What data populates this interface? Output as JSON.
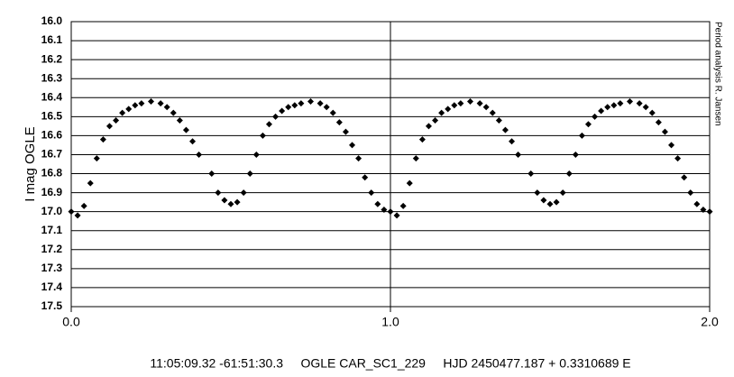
{
  "chart_data": {
    "type": "scatter",
    "y_label": "I mag OGLE",
    "caption": "11:05:09.32 -61:51:30.3     OGLE CAR_SC1_229     HJD 2450477.187 + 0.3310689 E",
    "annotation": "Period analysis R. Jansen",
    "color": "#000000",
    "grid": true,
    "y_inverted": true,
    "xlim": [
      0,
      2
    ],
    "xticks": [
      {
        "value": 0,
        "label": "0.0"
      },
      {
        "value": 1,
        "label": "1.0"
      },
      {
        "value": 2,
        "label": "2.0"
      }
    ],
    "ylim": [
      16,
      17.5
    ],
    "yticks": [
      {
        "value": 16,
        "label": "16.0"
      },
      16.1,
      16.2,
      16.3,
      16.4,
      16.5,
      16.6,
      16.7,
      16.8,
      16.9,
      {
        "value": 17,
        "label": "17.0"
      },
      17.1,
      17.2,
      17.3,
      17.4,
      17.5
    ],
    "x": [
      0.0,
      0.02,
      0.04,
      0.06,
      0.08,
      0.1,
      0.12,
      0.14,
      0.16,
      0.18,
      0.2,
      0.22,
      0.25,
      0.28,
      0.3,
      0.32,
      0.34,
      0.36,
      0.38,
      0.4,
      0.44,
      0.46,
      0.48,
      0.5,
      0.52,
      0.54,
      0.56,
      0.58,
      0.6,
      0.62,
      0.64,
      0.66,
      0.68,
      0.7,
      0.72,
      0.75,
      0.78,
      0.8,
      0.82,
      0.84,
      0.86,
      0.88,
      0.9,
      0.92,
      0.94,
      0.96,
      0.98,
      1.0,
      1.02,
      1.04,
      1.06,
      1.08,
      1.1,
      1.12,
      1.14,
      1.16,
      1.18,
      1.2,
      1.22,
      1.25,
      1.28,
      1.3,
      1.32,
      1.34,
      1.36,
      1.38,
      1.4,
      1.44,
      1.46,
      1.48,
      1.5,
      1.52,
      1.54,
      1.56,
      1.58,
      1.6,
      1.62,
      1.64,
      1.66,
      1.68,
      1.7,
      1.72,
      1.75,
      1.78,
      1.8,
      1.82,
      1.84,
      1.86,
      1.88,
      1.9,
      1.92,
      1.94,
      1.96,
      1.98,
      2.0
    ],
    "y": [
      17.0,
      17.02,
      16.97,
      16.85,
      16.72,
      16.62,
      16.55,
      16.52,
      16.48,
      16.46,
      16.44,
      16.43,
      16.42,
      16.43,
      16.45,
      16.48,
      16.52,
      16.57,
      16.63,
      16.7,
      16.8,
      16.9,
      16.94,
      16.96,
      16.95,
      16.9,
      16.8,
      16.7,
      16.6,
      16.54,
      16.5,
      16.47,
      16.45,
      16.44,
      16.43,
      16.42,
      16.43,
      16.45,
      16.48,
      16.53,
      16.58,
      16.65,
      16.72,
      16.82,
      16.9,
      16.96,
      16.99,
      17.0,
      17.02,
      16.97,
      16.85,
      16.72,
      16.62,
      16.55,
      16.52,
      16.48,
      16.46,
      16.44,
      16.43,
      16.42,
      16.43,
      16.45,
      16.48,
      16.52,
      16.57,
      16.63,
      16.7,
      16.8,
      16.9,
      16.94,
      16.96,
      16.95,
      16.9,
      16.8,
      16.7,
      16.6,
      16.54,
      16.5,
      16.47,
      16.45,
      16.44,
      16.43,
      16.42,
      16.43,
      16.45,
      16.48,
      16.53,
      16.58,
      16.65,
      16.72,
      16.82,
      16.9,
      16.96,
      16.99,
      17.0
    ]
  }
}
